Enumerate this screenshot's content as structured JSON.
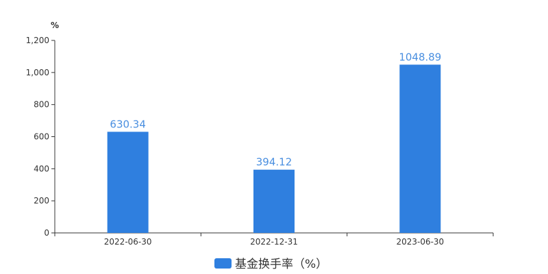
{
  "chart_data": {
    "type": "bar",
    "y_unit": "%",
    "categories": [
      "2022-06-30",
      "2022-12-31",
      "2023-06-30"
    ],
    "series": [
      {
        "name": "基金换手率（%）",
        "values": [
          630.34,
          394.12,
          1048.89
        ],
        "data_labels": [
          "630.34",
          "394.12",
          "1048.89"
        ],
        "color": "#2f7fdf"
      }
    ],
    "ylim": [
      0,
      1200
    ],
    "yticks": [
      0,
      200,
      400,
      600,
      800,
      1000,
      1200
    ],
    "ytick_labels": [
      "0",
      "200",
      "400",
      "600",
      "800",
      "1,000",
      "1,200"
    ],
    "grid": false,
    "legend_position": "bottom-center",
    "label_color": "#4a8fe0"
  }
}
